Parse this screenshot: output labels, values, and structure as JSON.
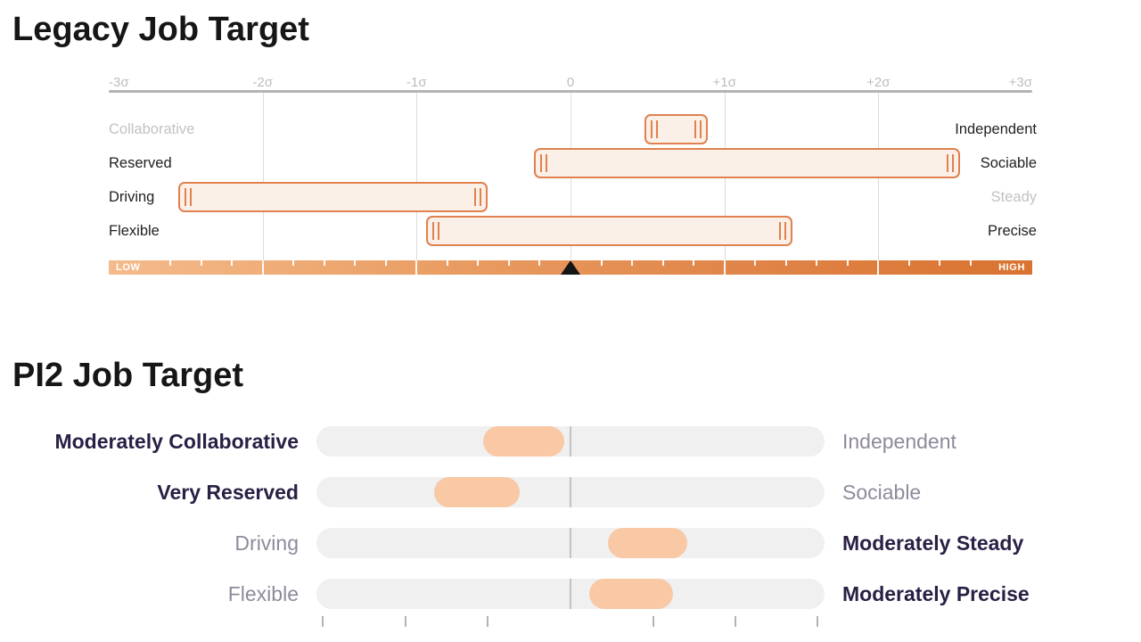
{
  "colors": {
    "accent_orange": "#e0814e",
    "legacy_bar_fill": "#fbf0e8",
    "gradient_left": "#f4bb8c",
    "gradient_right": "#d97330",
    "pi2_pill_peach": "#f9c8a5",
    "pi2_track_gray": "#f0f0f0",
    "dark_text": "#212121",
    "muted_text": "#c3c2c2",
    "navy_bold_text": "#2a2045",
    "gray_label_text": "#8f8a9b",
    "marker_black": "#141414"
  },
  "chart_data": [
    {
      "type": "range-bar",
      "title": "Legacy Job Target",
      "x_axis": {
        "range": [
          -3,
          3
        ],
        "ticks": [
          "-3σ",
          "-2σ",
          "-1σ",
          "0",
          "+1σ",
          "+2σ",
          "+3σ"
        ],
        "gridlines_sigma": [
          -2,
          -1,
          0,
          1,
          2
        ]
      },
      "rows": [
        {
          "left_label": "Collaborative",
          "right_label": "Independent",
          "muted_side": "left",
          "range_sigma": [
            0.48,
            0.89
          ]
        },
        {
          "left_label": "Reserved",
          "right_label": "Sociable",
          "muted_side": "none",
          "range_sigma": [
            -0.24,
            2.53
          ]
        },
        {
          "left_label": "Driving",
          "right_label": "Steady",
          "muted_side": "right",
          "range_sigma": [
            -2.55,
            -0.54
          ]
        },
        {
          "left_label": "Flexible",
          "right_label": "Precise",
          "muted_side": "none",
          "range_sigma": [
            -0.94,
            1.44
          ]
        }
      ],
      "scale_bar": {
        "left_text": "LOW",
        "right_text": "HIGH",
        "marker_sigma": 0,
        "minor_tick_step_sigma": 0.2,
        "minor_tick_extent_sigma": 2.6
      }
    },
    {
      "type": "range-bar",
      "title": "PI2 Job Target",
      "x_axis": {
        "range": [
          -3,
          3
        ],
        "center_divider_sigma": 0
      },
      "rows": [
        {
          "left_label": "Moderately Collaborative",
          "right_label": "Independent",
          "emphasis": "left",
          "range_sigma": [
            -1.03,
            -0.07
          ]
        },
        {
          "left_label": "Very Reserved",
          "right_label": "Sociable",
          "emphasis": "left",
          "range_sigma": [
            -1.61,
            -0.6
          ]
        },
        {
          "left_label": "Driving",
          "right_label": "Moderately Steady",
          "emphasis": "right",
          "range_sigma": [
            0.44,
            1.38
          ]
        },
        {
          "left_label": "Flexible",
          "right_label": "Moderately Precise",
          "emphasis": "right",
          "range_sigma": [
            0.22,
            1.21
          ]
        }
      ],
      "cropped_next_axis_ticks_x": [
        361,
        454,
        546,
        732,
        824,
        916
      ]
    }
  ]
}
